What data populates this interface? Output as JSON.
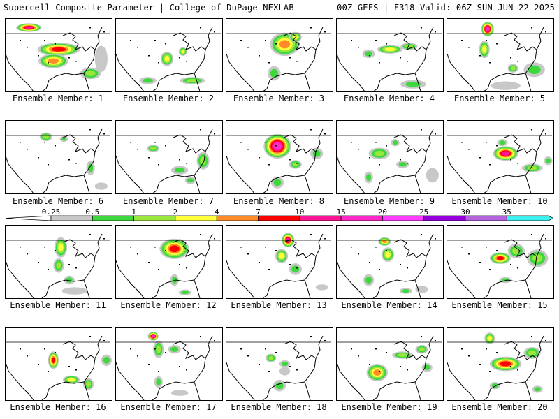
{
  "header": {
    "title": "Supercell Composite Parameter | College of DuPage NEXLAB",
    "run_info": "00Z GEFS | F318 Valid: 06Z SUN JUN 22 2025"
  },
  "legend": {
    "ticks": [
      "0.25",
      "0.5",
      "1",
      "2",
      "4",
      "7",
      "10",
      "15",
      "20",
      "25",
      "30",
      "35"
    ],
    "colors": [
      "#c8c8c8",
      "#3cd83c",
      "#9ae63c",
      "#ffff3c",
      "#ff8c28",
      "#ff0000",
      "#ff1493",
      "#ff28c8",
      "#ff3cff",
      "#9600dc",
      "#b464dc",
      "#3cf0f0"
    ],
    "low_color": "#ffffff"
  },
  "panels": [
    {
      "label": "Ensemble Member: 1",
      "max": 10,
      "blobs": [
        [
          0.22,
          0.12,
          0.12,
          0.06,
          10
        ],
        [
          0.5,
          0.42,
          0.2,
          0.09,
          7
        ],
        [
          0.45,
          0.58,
          0.14,
          0.1,
          4
        ],
        [
          0.9,
          0.55,
          0.06,
          0.18,
          0.25
        ],
        [
          0.8,
          0.75,
          0.1,
          0.08,
          1
        ]
      ]
    },
    {
      "label": "Ensemble Member: 2",
      "max": 2,
      "blobs": [
        [
          0.48,
          0.55,
          0.06,
          0.1,
          2
        ],
        [
          0.63,
          0.45,
          0.04,
          0.06,
          2
        ],
        [
          0.72,
          0.85,
          0.12,
          0.05,
          1
        ],
        [
          0.3,
          0.85,
          0.08,
          0.05,
          0.5
        ]
      ]
    },
    {
      "label": "Ensemble Member: 3",
      "max": 4,
      "blobs": [
        [
          0.55,
          0.35,
          0.14,
          0.16,
          4
        ],
        [
          0.65,
          0.25,
          0.06,
          0.07,
          2
        ],
        [
          0.45,
          0.75,
          0.06,
          0.1,
          0.5
        ]
      ]
    },
    {
      "label": "Ensemble Member: 4",
      "max": 2,
      "blobs": [
        [
          0.5,
          0.42,
          0.12,
          0.06,
          2
        ],
        [
          0.68,
          0.38,
          0.08,
          0.05,
          1
        ],
        [
          0.3,
          0.48,
          0.06,
          0.06,
          0.5
        ],
        [
          0.72,
          0.9,
          0.12,
          0.06,
          0.5
        ]
      ]
    },
    {
      "label": "Ensemble Member: 5",
      "max": 15,
      "blobs": [
        [
          0.38,
          0.14,
          0.06,
          0.1,
          15
        ],
        [
          0.35,
          0.42,
          0.05,
          0.12,
          2
        ],
        [
          0.62,
          0.68,
          0.05,
          0.06,
          1
        ],
        [
          0.82,
          0.7,
          0.1,
          0.1,
          0.5
        ],
        [
          0.55,
          0.92,
          0.14,
          0.06,
          0.25
        ]
      ]
    },
    {
      "label": "Ensemble Member: 6",
      "max": 1,
      "blobs": [
        [
          0.38,
          0.22,
          0.06,
          0.06,
          1
        ],
        [
          0.55,
          0.25,
          0.04,
          0.04,
          0.5
        ],
        [
          0.8,
          0.65,
          0.04,
          0.1,
          0.5
        ],
        [
          0.9,
          0.9,
          0.06,
          0.05,
          0.25
        ]
      ]
    },
    {
      "label": "Ensemble Member: 7",
      "max": 1,
      "blobs": [
        [
          0.35,
          0.38,
          0.06,
          0.05,
          1
        ],
        [
          0.6,
          0.68,
          0.08,
          0.06,
          0.5
        ],
        [
          0.82,
          0.55,
          0.06,
          0.12,
          1
        ],
        [
          0.7,
          0.82,
          0.05,
          0.05,
          0.5
        ]
      ]
    },
    {
      "label": "Ensemble Member: 8",
      "max": 15,
      "blobs": [
        [
          0.48,
          0.35,
          0.13,
          0.17,
          15
        ],
        [
          0.65,
          0.6,
          0.06,
          0.06,
          1
        ],
        [
          0.85,
          0.45,
          0.06,
          0.08,
          0.5
        ],
        [
          0.48,
          0.85,
          0.06,
          0.08,
          0.5
        ]
      ]
    },
    {
      "label": "Ensemble Member: 9",
      "max": 1,
      "blobs": [
        [
          0.4,
          0.45,
          0.1,
          0.08,
          1
        ],
        [
          0.55,
          0.3,
          0.04,
          0.05,
          0.5
        ],
        [
          0.3,
          0.78,
          0.04,
          0.08,
          0.5
        ],
        [
          0.9,
          0.75,
          0.06,
          0.1,
          0.25
        ],
        [
          0.62,
          0.6,
          0.06,
          0.05,
          0.5
        ]
      ]
    },
    {
      "label": "Ensemble Member: 10",
      "max": 10,
      "blobs": [
        [
          0.55,
          0.45,
          0.12,
          0.1,
          10
        ],
        [
          0.8,
          0.65,
          0.1,
          0.06,
          1
        ],
        [
          0.52,
          0.3,
          0.05,
          0.05,
          0.5
        ],
        [
          0.95,
          0.55,
          0.04,
          0.06,
          0.5
        ]
      ]
    },
    {
      "label": "Ensemble Member: 11",
      "max": 2,
      "blobs": [
        [
          0.52,
          0.3,
          0.06,
          0.14,
          2
        ],
        [
          0.5,
          0.55,
          0.05,
          0.1,
          1
        ],
        [
          0.6,
          0.75,
          0.05,
          0.06,
          0.5
        ],
        [
          0.65,
          0.9,
          0.12,
          0.05,
          0.25
        ]
      ]
    },
    {
      "label": "Ensemble Member: 12",
      "max": 7,
      "blobs": [
        [
          0.55,
          0.32,
          0.14,
          0.14,
          7
        ],
        [
          0.55,
          0.75,
          0.04,
          0.08,
          0.5
        ],
        [
          0.65,
          0.92,
          0.06,
          0.04,
          0.5
        ]
      ]
    },
    {
      "label": "Ensemble Member: 13",
      "max": 10,
      "blobs": [
        [
          0.58,
          0.2,
          0.06,
          0.1,
          10
        ],
        [
          0.52,
          0.42,
          0.06,
          0.1,
          2
        ],
        [
          0.65,
          0.6,
          0.06,
          0.08,
          0.5
        ],
        [
          0.9,
          0.85,
          0.06,
          0.04,
          0.25
        ]
      ]
    },
    {
      "label": "Ensemble Member: 14",
      "max": 4,
      "blobs": [
        [
          0.45,
          0.22,
          0.06,
          0.06,
          4
        ],
        [
          0.48,
          0.4,
          0.06,
          0.1,
          2
        ],
        [
          0.3,
          0.75,
          0.05,
          0.08,
          0.5
        ],
        [
          0.65,
          0.9,
          0.06,
          0.04,
          0.5
        ],
        [
          0.8,
          0.88,
          0.06,
          0.05,
          0.25
        ]
      ]
    },
    {
      "label": "Ensemble Member: 15",
      "max": 7,
      "blobs": [
        [
          0.5,
          0.45,
          0.1,
          0.08,
          7
        ],
        [
          0.65,
          0.35,
          0.08,
          0.1,
          1
        ],
        [
          0.85,
          0.45,
          0.1,
          0.12,
          1
        ],
        [
          0.55,
          0.75,
          0.06,
          0.04,
          0.5
        ]
      ]
    },
    {
      "label": "Ensemble Member: 16",
      "max": 7,
      "blobs": [
        [
          0.45,
          0.45,
          0.05,
          0.12,
          7
        ],
        [
          0.62,
          0.72,
          0.08,
          0.06,
          2
        ],
        [
          0.78,
          0.78,
          0.05,
          0.08,
          1
        ],
        [
          0.95,
          0.45,
          0.05,
          0.08,
          0.5
        ]
      ]
    },
    {
      "label": "Ensemble Member: 17",
      "max": 15,
      "blobs": [
        [
          0.35,
          0.12,
          0.05,
          0.06,
          15
        ],
        [
          0.4,
          0.3,
          0.05,
          0.12,
          1
        ],
        [
          0.55,
          0.3,
          0.06,
          0.06,
          0.5
        ],
        [
          0.4,
          0.75,
          0.04,
          0.08,
          0.5
        ],
        [
          0.6,
          0.9,
          0.08,
          0.04,
          0.25
        ]
      ]
    },
    {
      "label": "Ensemble Member: 18",
      "max": 1,
      "blobs": [
        [
          0.42,
          0.42,
          0.05,
          0.06,
          1
        ],
        [
          0.55,
          0.5,
          0.05,
          0.05,
          0.5
        ],
        [
          0.5,
          0.8,
          0.06,
          0.08,
          0.5
        ],
        [
          0.55,
          0.6,
          0.05,
          0.06,
          0.25
        ]
      ]
    },
    {
      "label": "Ensemble Member: 19",
      "max": 4,
      "blobs": [
        [
          0.38,
          0.62,
          0.1,
          0.12,
          4
        ],
        [
          0.62,
          0.38,
          0.1,
          0.05,
          1
        ],
        [
          0.8,
          0.3,
          0.06,
          0.06,
          1
        ],
        [
          0.85,
          0.55,
          0.05,
          0.06,
          0.5
        ]
      ]
    },
    {
      "label": "Ensemble Member: 20",
      "max": 7,
      "blobs": [
        [
          0.55,
          0.5,
          0.15,
          0.1,
          7
        ],
        [
          0.4,
          0.15,
          0.05,
          0.08,
          2
        ],
        [
          0.8,
          0.35,
          0.08,
          0.08,
          1
        ],
        [
          0.45,
          0.8,
          0.05,
          0.05,
          0.5
        ],
        [
          0.85,
          0.85,
          0.05,
          0.05,
          0.5
        ]
      ]
    }
  ]
}
